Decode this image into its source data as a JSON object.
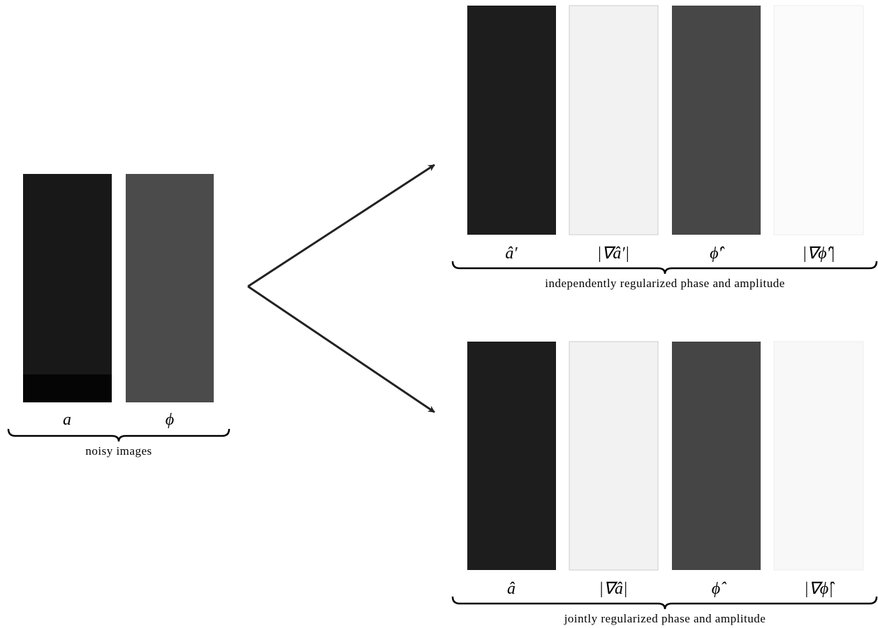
{
  "noisy": {
    "labels": [
      "a",
      "ϕ"
    ],
    "caption": "noisy images"
  },
  "independent": {
    "labels": [
      "â′",
      "|∇â′|",
      "ϕ̂′",
      "|∇ϕ̂′|"
    ],
    "caption": "independently regularized phase and amplitude"
  },
  "joint": {
    "labels": [
      "â",
      "|∇â|",
      "ϕ̂",
      "|∇ϕ̂|"
    ],
    "caption": "jointly regularized phase and amplitude"
  }
}
